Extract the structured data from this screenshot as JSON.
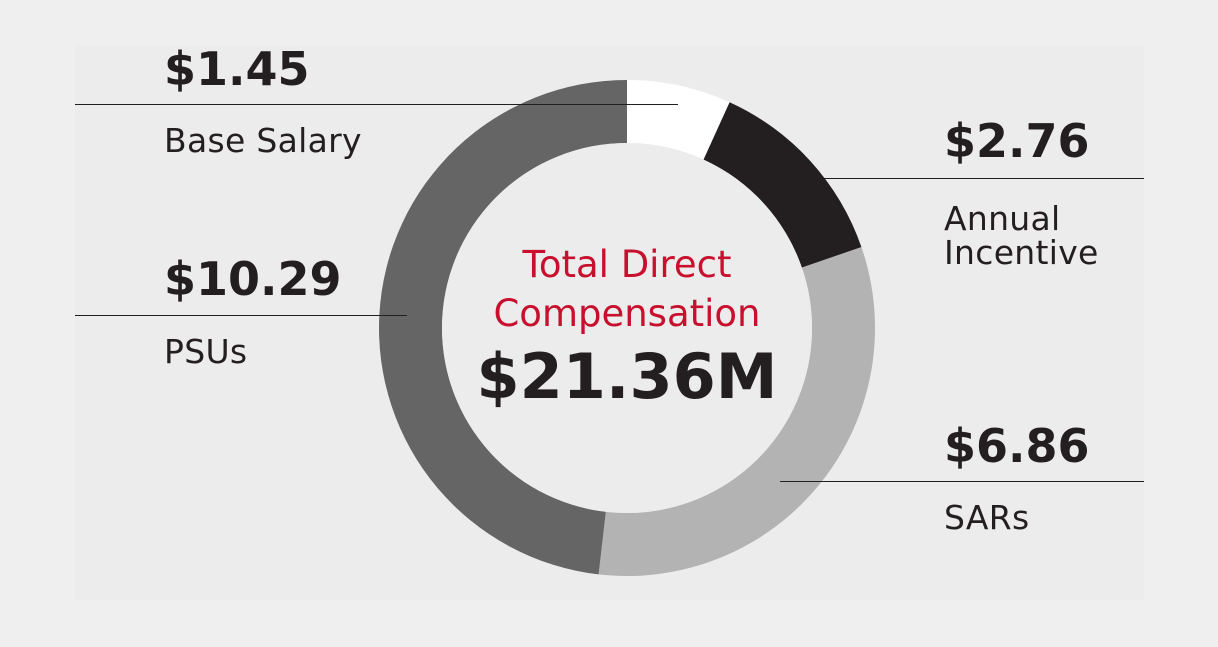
{
  "chart_data": {
    "type": "pie",
    "title": "Total Direct Compensation",
    "total_label": "$21.36M",
    "slices": [
      {
        "name": "Base Salary",
        "value": 1.45,
        "value_label": "$1.45",
        "color": "#ffffff"
      },
      {
        "name": "Annual Incentive",
        "value": 2.76,
        "value_label": "$2.76",
        "color": "#231f20"
      },
      {
        "name": "SARs",
        "value": 6.86,
        "value_label": "$6.86",
        "color": "#b3b3b4"
      },
      {
        "name": "PSUs",
        "value": 10.29,
        "value_label": "$10.29",
        "color": "#656566"
      }
    ],
    "center_color": "#ececec",
    "title_color": "#c8102e"
  }
}
